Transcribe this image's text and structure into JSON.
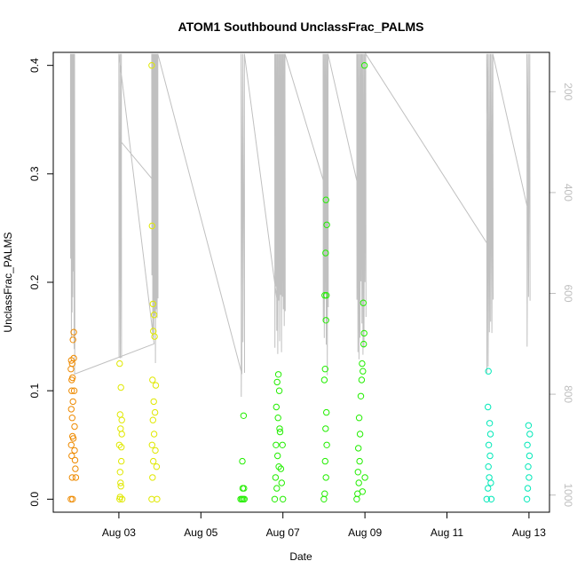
{
  "chart_data": {
    "type": "scatter",
    "title": "ATOM1 Southbound UnclassFrac_PALMS",
    "xlabel": "Date",
    "ylabel": "UnclassFrac_PALMS",
    "x_ticks": [
      "Aug 03",
      "Aug 05",
      "Aug 07",
      "Aug 09",
      "Aug 11",
      "Aug 13"
    ],
    "x_tick_days": [
      3,
      5,
      7,
      9,
      11,
      13
    ],
    "xlim_days": [
      1.4,
      13.5
    ],
    "ylim": [
      -0.012,
      0.412
    ],
    "y_ticks": [
      "0.0",
      "0.1",
      "0.2",
      "0.3",
      "0.4"
    ],
    "y_tick_values": [
      0.0,
      0.1,
      0.2,
      0.3,
      0.4
    ],
    "y2_ticks": [
      "200",
      "400",
      "600",
      "800",
      "1000"
    ],
    "y2_tick_values": [
      200,
      400,
      600,
      800,
      1000
    ],
    "y2lim": [
      122,
      1034
    ],
    "y2_reversed": true,
    "grid": false,
    "pressure_color": "#c0c0c0",
    "series": [
      {
        "color": "#ee8a00",
        "points": [
          [
            1.83,
            0.0
          ],
          [
            1.86,
            0.02
          ],
          [
            1.85,
            0.04
          ],
          [
            1.84,
            0.05
          ],
          [
            1.87,
            0.058
          ],
          [
            1.86,
            0.075
          ],
          [
            1.84,
            0.083
          ],
          [
            1.88,
            0.09
          ],
          [
            1.85,
            0.1
          ],
          [
            1.87,
            0.112
          ],
          [
            1.83,
            0.12
          ],
          [
            1.86,
            0.125
          ],
          [
            1.84,
            0.128
          ],
          [
            1.88,
            0.147
          ],
          [
            1.9,
            0.154
          ],
          [
            1.92,
            0.067
          ],
          [
            1.95,
            0.02
          ],
          [
            1.93,
            0.036
          ],
          [
            1.91,
            0.1
          ],
          [
            1.89,
            0.056
          ],
          [
            1.94,
            0.028
          ],
          [
            1.87,
            0.0
          ],
          [
            1.9,
            0.13
          ],
          [
            1.85,
            0.11
          ],
          [
            1.92,
            0.045
          ]
        ]
      },
      {
        "color": "#e0e800",
        "points": [
          [
            3.02,
            0.0
          ],
          [
            3.05,
            0.012
          ],
          [
            3.03,
            0.025
          ],
          [
            3.06,
            0.035
          ],
          [
            3.01,
            0.05
          ],
          [
            3.04,
            0.065
          ],
          [
            3.07,
            0.073
          ],
          [
            3.03,
            0.078
          ],
          [
            3.05,
            0.103
          ],
          [
            3.02,
            0.125
          ],
          [
            3.08,
            0.0
          ],
          [
            3.06,
            0.048
          ],
          [
            3.04,
            0.015
          ],
          [
            3.07,
            0.06
          ],
          [
            3.03,
            0.002
          ],
          [
            3.8,
            0.0
          ],
          [
            3.82,
            0.02
          ],
          [
            3.84,
            0.035
          ],
          [
            3.81,
            0.05
          ],
          [
            3.86,
            0.06
          ],
          [
            3.83,
            0.073
          ],
          [
            3.88,
            0.08
          ],
          [
            3.85,
            0.09
          ],
          [
            3.82,
            0.11
          ],
          [
            3.87,
            0.15
          ],
          [
            3.84,
            0.155
          ],
          [
            3.86,
            0.17
          ],
          [
            3.83,
            0.18
          ],
          [
            3.81,
            0.252
          ],
          [
            3.8,
            0.4
          ],
          [
            3.9,
            0.105
          ],
          [
            3.92,
            0.03
          ],
          [
            3.89,
            0.045
          ],
          [
            3.93,
            0.0
          ]
        ]
      },
      {
        "color": "#22ee00",
        "points": [
          [
            5.97,
            0.0
          ],
          [
            6.0,
            0.0
          ],
          [
            6.03,
            0.0
          ],
          [
            6.06,
            0.0
          ],
          [
            6.02,
            0.01
          ],
          [
            6.05,
            0.01
          ],
          [
            6.01,
            0.035
          ],
          [
            6.04,
            0.077
          ],
          [
            6.8,
            0.0
          ],
          [
            6.85,
            0.01
          ],
          [
            6.82,
            0.02
          ],
          [
            6.9,
            0.03
          ],
          [
            6.87,
            0.04
          ],
          [
            6.83,
            0.05
          ],
          [
            6.93,
            0.062
          ],
          [
            6.88,
            0.075
          ],
          [
            6.84,
            0.085
          ],
          [
            6.91,
            0.1
          ],
          [
            6.86,
            0.108
          ],
          [
            6.89,
            0.115
          ],
          [
            7.0,
            0.0
          ],
          [
            6.97,
            0.015
          ],
          [
            6.95,
            0.028
          ],
          [
            6.99,
            0.05
          ],
          [
            6.92,
            0.065
          ],
          [
            8.0,
            0.0
          ],
          [
            8.02,
            0.005
          ],
          [
            8.05,
            0.02
          ],
          [
            8.03,
            0.035
          ],
          [
            8.07,
            0.05
          ],
          [
            8.04,
            0.065
          ],
          [
            8.06,
            0.08
          ],
          [
            8.01,
            0.11
          ],
          [
            8.03,
            0.12
          ],
          [
            8.05,
            0.165
          ],
          [
            8.02,
            0.188
          ],
          [
            8.06,
            0.188
          ],
          [
            8.04,
            0.227
          ],
          [
            8.07,
            0.253
          ],
          [
            8.05,
            0.276
          ],
          [
            8.8,
            0.0
          ],
          [
            8.82,
            0.005
          ],
          [
            8.85,
            0.015
          ],
          [
            8.83,
            0.025
          ],
          [
            8.87,
            0.035
          ],
          [
            8.84,
            0.047
          ],
          [
            8.88,
            0.06
          ],
          [
            8.86,
            0.075
          ],
          [
            8.9,
            0.095
          ],
          [
            8.92,
            0.11
          ],
          [
            8.95,
            0.118
          ],
          [
            8.93,
            0.125
          ],
          [
            8.97,
            0.143
          ],
          [
            8.98,
            0.153
          ],
          [
            8.96,
            0.181
          ],
          [
            8.99,
            0.4
          ],
          [
            9.0,
            0.02
          ],
          [
            8.94,
            0.007
          ]
        ]
      },
      {
        "color": "#00e8b8",
        "points": [
          [
            11.97,
            0.0
          ],
          [
            12.0,
            0.01
          ],
          [
            12.03,
            0.02
          ],
          [
            12.01,
            0.03
          ],
          [
            12.05,
            0.04
          ],
          [
            12.02,
            0.05
          ],
          [
            12.06,
            0.06
          ],
          [
            12.04,
            0.07
          ],
          [
            12.0,
            0.085
          ],
          [
            12.01,
            0.118
          ],
          [
            12.08,
            0.0
          ],
          [
            12.07,
            0.015
          ],
          [
            12.95,
            0.0
          ],
          [
            12.97,
            0.01
          ],
          [
            13.0,
            0.02
          ],
          [
            12.98,
            0.03
          ],
          [
            13.01,
            0.04
          ],
          [
            12.96,
            0.05
          ],
          [
            13.02,
            0.06
          ],
          [
            12.99,
            0.068
          ]
        ]
      }
    ]
  }
}
